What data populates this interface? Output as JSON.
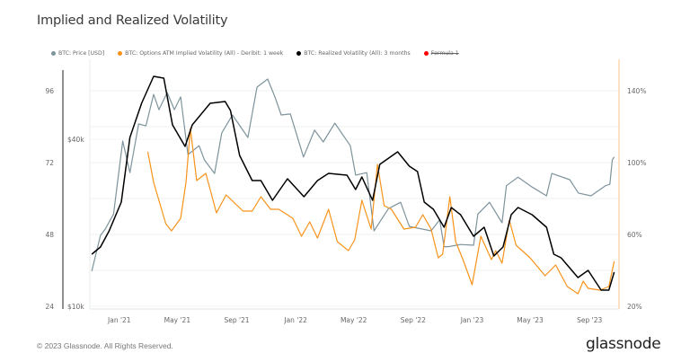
{
  "header": {
    "title": "Implied and Realized Volatility"
  },
  "legend": [
    {
      "label": "BTC: Price [USD]",
      "color": "#7d949c",
      "hidden": false
    },
    {
      "label": "BTC: Options ATM Implied Volatility (All) - Deribit: 1 week",
      "color": "#f7931a",
      "hidden": false
    },
    {
      "label": "BTC: Realized Volatility (All): 3 months",
      "color": "#000000",
      "hidden": false
    },
    {
      "label": "Formula 1",
      "color": "#ff0000",
      "hidden": true
    }
  ],
  "footer": {
    "copyright": "© 2023 Glassnode. All Rights Reserved.",
    "logo": "glassnode"
  },
  "chart_data": {
    "type": "line",
    "title": "Implied and Realized Volatility",
    "xrange": [
      "2020-11-01",
      "2023-11-01"
    ],
    "x_ticks": [
      {
        "date": "2021-01-01",
        "label": "Jan '21"
      },
      {
        "date": "2021-05-01",
        "label": "May '21"
      },
      {
        "date": "2021-09-01",
        "label": "Sep '21"
      },
      {
        "date": "2022-01-01",
        "label": "Jan '22"
      },
      {
        "date": "2022-05-01",
        "label": "May '22"
      },
      {
        "date": "2022-09-01",
        "label": "Sep '22"
      },
      {
        "date": "2023-01-01",
        "label": "Jan '23"
      },
      {
        "date": "2023-05-01",
        "label": "May '23"
      },
      {
        "date": "2023-09-01",
        "label": "Sep '23"
      }
    ],
    "axes": {
      "left_formula": {
        "ticks": [
          96,
          72,
          48,
          24
        ],
        "range": [
          24,
          96
        ]
      },
      "price": {
        "scale": "log",
        "ticks": [
          {
            "value": 40000,
            "label": "$40k"
          },
          {
            "value": 10000,
            "label": "$10k"
          }
        ]
      },
      "right_volatility": {
        "ticks": [
          {
            "value": 140,
            "label": "140%"
          },
          {
            "value": 100,
            "label": "100%"
          },
          {
            "value": 60,
            "label": "60%"
          },
          {
            "value": 20,
            "label": "20%"
          }
        ],
        "range": [
          20,
          140
        ]
      }
    },
    "grid": true,
    "legend_position": "top-left",
    "series": [
      {
        "name": "BTC: Price [USD]",
        "axis": "price",
        "color": "#7d949c",
        "points": [
          [
            "2020-11-05",
            13400
          ],
          [
            "2020-11-23",
            18000
          ],
          [
            "2020-12-03",
            19000
          ],
          [
            "2020-12-20",
            21500
          ],
          [
            "2021-01-08",
            39400
          ],
          [
            "2021-01-23",
            30300
          ],
          [
            "2021-02-10",
            45400
          ],
          [
            "2021-02-25",
            44700
          ],
          [
            "2021-03-13",
            58000
          ],
          [
            "2021-03-24",
            51100
          ],
          [
            "2021-04-10",
            58900
          ],
          [
            "2021-04-25",
            51100
          ],
          [
            "2021-05-08",
            56800
          ],
          [
            "2021-05-23",
            35200
          ],
          [
            "2021-06-15",
            37900
          ],
          [
            "2021-06-26",
            33700
          ],
          [
            "2021-07-17",
            30100
          ],
          [
            "2021-08-01",
            42100
          ],
          [
            "2021-08-23",
            48900
          ],
          [
            "2021-09-24",
            40600
          ],
          [
            "2021-10-13",
            61600
          ],
          [
            "2021-11-04",
            65900
          ],
          [
            "2021-11-19",
            56800
          ],
          [
            "2021-12-02",
            48900
          ],
          [
            "2021-12-21",
            49300
          ],
          [
            "2022-01-17",
            34500
          ],
          [
            "2022-02-09",
            43100
          ],
          [
            "2022-02-27",
            39100
          ],
          [
            "2022-03-23",
            45700
          ],
          [
            "2022-04-24",
            37900
          ],
          [
            "2022-05-05",
            29700
          ],
          [
            "2022-05-28",
            30300
          ],
          [
            "2022-06-12",
            18700
          ],
          [
            "2022-07-12",
            22500
          ],
          [
            "2022-08-06",
            23700
          ],
          [
            "2022-08-24",
            19400
          ],
          [
            "2022-09-19",
            19000
          ],
          [
            "2022-10-08",
            18700
          ],
          [
            "2022-10-26",
            20500
          ],
          [
            "2022-11-04",
            16400
          ],
          [
            "2022-11-13",
            16400
          ],
          [
            "2022-12-08",
            16700
          ],
          [
            "2023-01-04",
            16600
          ],
          [
            "2023-01-13",
            21500
          ],
          [
            "2023-02-06",
            23700
          ],
          [
            "2023-03-04",
            20000
          ],
          [
            "2023-03-13",
            27200
          ],
          [
            "2023-04-06",
            29200
          ],
          [
            "2023-05-05",
            26900
          ],
          [
            "2023-06-04",
            25000
          ],
          [
            "2023-06-15",
            30100
          ],
          [
            "2023-07-22",
            28600
          ],
          [
            "2023-08-09",
            25600
          ],
          [
            "2023-09-04",
            25000
          ],
          [
            "2023-10-04",
            27200
          ],
          [
            "2023-10-13",
            27500
          ],
          [
            "2023-10-18",
            33700
          ],
          [
            "2023-10-22",
            34500
          ]
        ]
      },
      {
        "name": "BTC: Options ATM Implied Volatility (All) - Deribit: 1 week",
        "axis": "right_volatility",
        "color": "#f7931a",
        "points": [
          [
            "2021-03-01",
            106
          ],
          [
            "2021-03-13",
            89
          ],
          [
            "2021-04-07",
            66
          ],
          [
            "2021-04-19",
            62
          ],
          [
            "2021-05-08",
            69
          ],
          [
            "2021-05-19",
            89
          ],
          [
            "2021-05-28",
            119
          ],
          [
            "2021-06-10",
            90
          ],
          [
            "2021-06-29",
            94
          ],
          [
            "2021-07-21",
            72
          ],
          [
            "2021-08-10",
            82
          ],
          [
            "2021-09-14",
            73
          ],
          [
            "2021-10-03",
            73
          ],
          [
            "2021-10-21",
            81
          ],
          [
            "2021-11-10",
            74
          ],
          [
            "2021-11-27",
            74
          ],
          [
            "2021-12-26",
            69
          ],
          [
            "2022-01-13",
            59
          ],
          [
            "2022-01-30",
            67
          ],
          [
            "2022-02-15",
            58
          ],
          [
            "2022-03-10",
            74
          ],
          [
            "2022-03-28",
            56
          ],
          [
            "2022-04-20",
            51
          ],
          [
            "2022-05-03",
            57
          ],
          [
            "2022-05-18",
            79
          ],
          [
            "2022-06-06",
            63
          ],
          [
            "2022-06-19",
            99
          ],
          [
            "2022-07-03",
            76
          ],
          [
            "2022-07-18",
            74
          ],
          [
            "2022-08-13",
            63
          ],
          [
            "2022-09-06",
            64
          ],
          [
            "2022-09-21",
            71
          ],
          [
            "2022-10-08",
            63
          ],
          [
            "2022-10-23",
            47
          ],
          [
            "2022-11-01",
            49
          ],
          [
            "2022-11-16",
            81
          ],
          [
            "2022-11-28",
            56
          ],
          [
            "2022-12-13",
            46
          ],
          [
            "2023-01-01",
            32
          ],
          [
            "2023-01-19",
            59
          ],
          [
            "2023-02-10",
            46
          ],
          [
            "2023-02-19",
            51
          ],
          [
            "2023-03-04",
            44
          ],
          [
            "2023-03-19",
            68
          ],
          [
            "2023-04-02",
            54
          ],
          [
            "2023-05-01",
            47
          ],
          [
            "2023-06-01",
            37
          ],
          [
            "2023-06-23",
            43
          ],
          [
            "2023-07-17",
            31
          ],
          [
            "2023-08-08",
            27
          ],
          [
            "2023-08-19",
            34
          ],
          [
            "2023-08-29",
            30
          ],
          [
            "2023-09-23",
            29
          ],
          [
            "2023-10-11",
            31
          ],
          [
            "2023-10-22",
            45
          ]
        ]
      },
      {
        "name": "BTC: Realized Volatility (All): 3 months",
        "axis": "right_volatility",
        "color": "#000000",
        "points": [
          [
            "2020-11-05",
            49
          ],
          [
            "2020-11-23",
            53
          ],
          [
            "2020-12-11",
            62
          ],
          [
            "2021-01-05",
            78
          ],
          [
            "2021-01-23",
            114
          ],
          [
            "2021-02-16",
            133
          ],
          [
            "2021-03-13",
            148
          ],
          [
            "2021-04-03",
            147
          ],
          [
            "2021-04-21",
            121
          ],
          [
            "2021-05-17",
            109
          ],
          [
            "2021-06-01",
            121
          ],
          [
            "2021-07-08",
            133
          ],
          [
            "2021-08-08",
            134
          ],
          [
            "2021-08-19",
            129
          ],
          [
            "2021-09-07",
            104
          ],
          [
            "2021-10-03",
            90
          ],
          [
            "2021-10-21",
            90
          ],
          [
            "2021-11-14",
            79
          ],
          [
            "2021-12-15",
            91
          ],
          [
            "2022-01-18",
            81
          ],
          [
            "2022-02-15",
            90
          ],
          [
            "2022-03-10",
            94
          ],
          [
            "2022-04-17",
            93
          ],
          [
            "2022-05-05",
            85
          ],
          [
            "2022-05-18",
            92
          ],
          [
            "2022-06-09",
            79
          ],
          [
            "2022-06-24",
            99
          ],
          [
            "2022-07-31",
            106
          ],
          [
            "2022-08-24",
            98
          ],
          [
            "2022-09-10",
            95
          ],
          [
            "2022-09-24",
            78
          ],
          [
            "2022-10-13",
            74
          ],
          [
            "2022-11-04",
            64
          ],
          [
            "2022-11-19",
            75
          ],
          [
            "2022-12-08",
            71
          ],
          [
            "2023-01-04",
            59
          ],
          [
            "2023-01-26",
            64
          ],
          [
            "2023-02-15",
            48
          ],
          [
            "2023-03-06",
            53
          ],
          [
            "2023-03-23",
            71
          ],
          [
            "2023-04-06",
            75
          ],
          [
            "2023-05-05",
            71
          ],
          [
            "2023-06-04",
            64
          ],
          [
            "2023-06-19",
            49
          ],
          [
            "2023-07-04",
            47
          ],
          [
            "2023-08-08",
            36
          ],
          [
            "2023-08-29",
            40
          ],
          [
            "2023-09-25",
            29
          ],
          [
            "2023-10-11",
            29
          ],
          [
            "2023-10-22",
            39
          ]
        ]
      }
    ]
  }
}
